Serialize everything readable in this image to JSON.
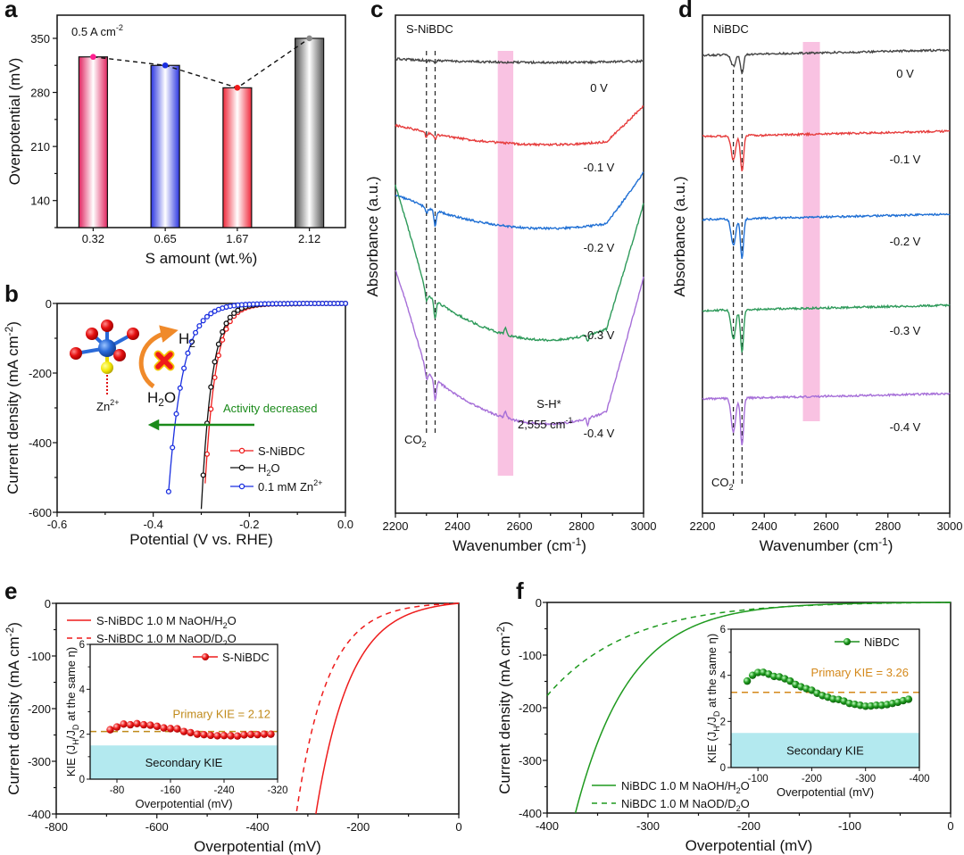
{
  "chart_data": [
    {
      "id": "a",
      "panel_label": "a",
      "type": "bar",
      "title": "",
      "annotation": "0.5 A cm",
      "annotation_sup": "-2",
      "xlabel": "S amount (wt.%)",
      "ylabel": "Overpotential (mV)",
      "categories": [
        "0.32",
        "0.65",
        "1.67",
        "2.12"
      ],
      "values": [
        326,
        315,
        286,
        350
      ],
      "bar_colors": [
        "#e8306a",
        "#2f3ae0",
        "#f0303a",
        "#6a6a6a"
      ],
      "marker_colors": [
        "#ff1f8f",
        "#1a2fe0",
        "#f01a1a",
        "#8a8a8a"
      ],
      "connecting_line": "dashed",
      "ylim": [
        105,
        380
      ],
      "yticks": [
        140,
        210,
        280,
        350
      ],
      "grid": false
    },
    {
      "id": "b",
      "panel_label": "b",
      "type": "line",
      "xlabel": "Potential (V vs. RHE)",
      "ylabel": "Current density (mA cm",
      "ylabel_sup": "-2",
      "ylabel_close": ")",
      "xlim": [
        -0.6,
        0.0
      ],
      "ylim": [
        -600,
        0
      ],
      "xticks": [
        -0.6,
        -0.4,
        -0.2,
        0.0
      ],
      "xtick_labels": [
        "-0.6",
        "-0.4",
        "-0.2",
        "0.0"
      ],
      "yticks": [
        -600,
        -400,
        -200,
        0
      ],
      "series": [
        {
          "name": "S-NiBDC",
          "color": "#ee1c1c",
          "onset": -0.09,
          "x_end": -0.295,
          "shape": {
            "v0": 0.06,
            "k": 0.0225
          },
          "markers": true
        },
        {
          "name": "H2O",
          "label_main": "H",
          "label_sub": "2",
          "label_tail": "O",
          "color": "#111111",
          "onset": -0.09,
          "x_end": -0.3,
          "shape": {
            "v0": 0.06,
            "k": 0.0222
          },
          "markers": true
        },
        {
          "name": "0.1 mM Zn2+",
          "label_main": "0.1 mM Zn",
          "label_sup": "2+",
          "color": "#1a2fe0",
          "onset": -0.12,
          "x_end": -0.368,
          "shape": {
            "v0": 0.085,
            "k": 0.03
          },
          "markers": true
        }
      ],
      "legend": [
        "S-NiBDC",
        "H2O",
        "0.1 mM Zn2+"
      ],
      "legend_position": "bottom-right",
      "annotations": {
        "arrow_text": "Activity decreased",
        "arrow_color": "#1a8a1a",
        "h2": "H",
        "h2_sub": "2",
        "h2o_main": "H",
        "h2o_sub": "2",
        "h2o_tail": "O",
        "zn": "Zn",
        "zn_sup": "2+"
      }
    },
    {
      "id": "c",
      "panel_label": "c",
      "type": "line",
      "sample_label": "S-NiBDC",
      "xlabel": "Wavenumber (cm",
      "xlabel_sup": "-1",
      "xlabel_close": ")",
      "ylabel": "Absorbance (a.u.)",
      "xlim": [
        2200,
        3000
      ],
      "xticks": [
        2200,
        2400,
        2600,
        2800,
        3000
      ],
      "highlight_band": [
        2530,
        2580
      ],
      "highlight_color": "#f9c2e2",
      "dashed_lines": [
        2300,
        2328
      ],
      "series": [
        {
          "name": "0 V",
          "color": "#444444"
        },
        {
          "name": "-0.1 V",
          "color": "#e63c3c"
        },
        {
          "name": "-0.2 V",
          "color": "#1f6fd4"
        },
        {
          "name": "-0.3 V",
          "color": "#2e9a5a"
        },
        {
          "name": "-0.4 V",
          "color": "#a66fd8"
        }
      ],
      "annotations": {
        "co2_main": "CO",
        "co2_sub": "2",
        "sh": "S-H*",
        "sh_wn": "2,555 cm",
        "sh_wn_sup": "-1"
      }
    },
    {
      "id": "d",
      "panel_label": "d",
      "type": "line",
      "sample_label": "NiBDC",
      "xlabel": "Wavenumber (cm",
      "xlabel_sup": "-1",
      "xlabel_close": ")",
      "ylabel": "Absorbance (a.u.)",
      "xlim": [
        2200,
        3000
      ],
      "xticks": [
        2200,
        2400,
        2600,
        2800,
        3000
      ],
      "highlight_band": [
        2525,
        2580
      ],
      "highlight_color": "#f9c2e2",
      "dashed_lines": [
        2300,
        2328
      ],
      "series": [
        {
          "name": "0 V",
          "color": "#444444"
        },
        {
          "name": "-0.1 V",
          "color": "#e63c3c"
        },
        {
          "name": "-0.2 V",
          "color": "#1f6fd4"
        },
        {
          "name": "-0.3 V",
          "color": "#2e9a5a"
        },
        {
          "name": "-0.4 V",
          "color": "#a66fd8"
        }
      ],
      "annotations": {
        "co2_main": "CO",
        "co2_sub": "2"
      }
    },
    {
      "id": "e",
      "panel_label": "e",
      "type": "line",
      "xlabel": "Overpotential (mV)",
      "ylabel": "Current density (mA cm",
      "ylabel_sup": "-2",
      "ylabel_close": ")",
      "xlim": [
        -800,
        0
      ],
      "ylim": [
        -400,
        0
      ],
      "xticks": [
        -800,
        -600,
        -400,
        -200,
        0
      ],
      "yticks": [
        -400,
        -300,
        -200,
        -100,
        0
      ],
      "series": [
        {
          "name": "S-NiBDC 1.0 M NaOH/H2O",
          "label_main": "S-NiBDC 1.0 M NaOH/H",
          "label_sub": "2",
          "label_tail": "O",
          "color": "#ee1c1c",
          "dash": false,
          "x_at_-400": -284,
          "v0": 68
        },
        {
          "name": "S-NiBDC 1.0 M NaOD/D2O",
          "label_main": "S-NiBDC 1.0 M NaOD/D",
          "label_sub": "2",
          "label_tail": "O",
          "color": "#ee1c1c",
          "dash": true,
          "x_at_-400": -323,
          "v0": 62
        }
      ],
      "legend_position": "top-left",
      "inset": {
        "type": "scatter",
        "xlabel": "Overpotential (mV)",
        "ylabel": "KIE (J",
        "ylabel_parts": [
          "KIE (J",
          "H",
          "/J",
          "D",
          " at the same η)"
        ],
        "xlim": [
          -40,
          -320
        ],
        "ylim": [
          0,
          6
        ],
        "xticks": [
          -80,
          -160,
          -240,
          -320
        ],
        "yticks": [
          0,
          2,
          4,
          6
        ],
        "series_name": "S-NiBDC",
        "color": "#ee1c1c",
        "x": [
          -70,
          -80,
          -90,
          -100,
          -110,
          -120,
          -130,
          -140,
          -150,
          -160,
          -170,
          -180,
          -190,
          -200,
          -210,
          -220,
          -230,
          -240,
          -250,
          -260,
          -270,
          -280,
          -290,
          -300,
          -310
        ],
        "y": [
          2.2,
          2.32,
          2.45,
          2.42,
          2.47,
          2.42,
          2.4,
          2.35,
          2.28,
          2.25,
          2.24,
          2.12,
          2.07,
          2.0,
          1.98,
          1.95,
          1.93,
          1.94,
          1.93,
          1.92,
          1.97,
          1.99,
          1.98,
          2.0,
          2.0
        ],
        "primary_kie": 2.12,
        "primary_label": "Primary KIE = 2.12",
        "primary_color": "#c08a1a",
        "secondary_range": [
          0,
          1.5
        ],
        "secondary_label": "Secondary KIE",
        "secondary_color": "#b3e9ef"
      }
    },
    {
      "id": "f",
      "panel_label": "f",
      "type": "line",
      "xlabel": "Overpotential (mV)",
      "ylabel": "Current density (mA cm",
      "ylabel_sup": "-2",
      "ylabel_close": ")",
      "xlim": [
        -400,
        0
      ],
      "ylim": [
        -400,
        0
      ],
      "xticks": [
        -400,
        -300,
        -200,
        -100,
        0
      ],
      "yticks": [
        -400,
        -300,
        -200,
        -100,
        0
      ],
      "series": [
        {
          "name": "NiBDC 1.0 M NaOH/H2O",
          "label_main": "NiBDC 1.0 M NaOH/H",
          "label_sub": "2",
          "label_tail": "O",
          "color": "#1f9a1f",
          "dash": false,
          "x_at_-400": -372,
          "v0": 54
        },
        {
          "name": "NiBDC 1.0 M NaOD/D2O",
          "label_main": "NiBDC 1.0 M NaOD/D",
          "label_sub": "2",
          "label_tail": "O",
          "color": "#1f9a1f",
          "dash": true,
          "y_at_-400": -177,
          "v0": 80
        }
      ],
      "legend_position": "bottom-left",
      "inset": {
        "type": "scatter",
        "xlabel": "Overpotential (mV)",
        "ylabel_parts": [
          "KIE (J",
          "H",
          "/J",
          "D",
          " at the same η)"
        ],
        "xlim": [
          -50,
          -400
        ],
        "ylim": [
          0,
          6
        ],
        "xticks": [
          -100,
          -200,
          -300,
          -400
        ],
        "yticks": [
          0,
          2,
          4,
          6
        ],
        "series_name": "NiBDC",
        "color": "#1f8f1f",
        "x": [
          -80,
          -90,
          -100,
          -110,
          -120,
          -130,
          -140,
          -150,
          -160,
          -170,
          -180,
          -190,
          -200,
          -210,
          -220,
          -230,
          -240,
          -250,
          -260,
          -270,
          -280,
          -290,
          -300,
          -310,
          -320,
          -330,
          -340,
          -350,
          -360,
          -370,
          -380
        ],
        "y": [
          3.75,
          4.0,
          4.12,
          4.13,
          4.05,
          3.95,
          3.93,
          3.85,
          3.75,
          3.6,
          3.5,
          3.42,
          3.35,
          3.22,
          3.12,
          3.05,
          2.97,
          2.95,
          2.88,
          2.78,
          2.74,
          2.7,
          2.66,
          2.67,
          2.7,
          2.7,
          2.73,
          2.78,
          2.83,
          2.9,
          2.96
        ],
        "primary_kie": 3.26,
        "primary_label": "Primary KIE = 3.26",
        "primary_color": "#d4881a",
        "secondary_range": [
          0,
          1.5
        ],
        "secondary_label": "Secondary KIE",
        "secondary_color": "#b3e9ef"
      }
    }
  ]
}
